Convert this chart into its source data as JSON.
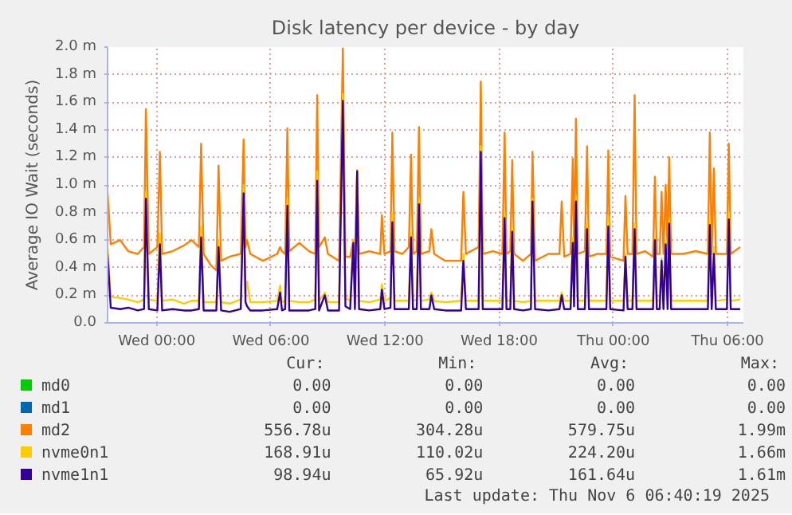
{
  "chart_data": {
    "type": "line",
    "title": "Disk latency per device - by day",
    "ylabel": "Average IO Wait (seconds)",
    "x": [
      "2025-11-04T21:25",
      "2025-11-04T21:35",
      "2025-11-04T22:05",
      "2025-11-04T22:30",
      "2025-11-04T23:00",
      "2025-11-04T23:20",
      "2025-11-04T23:26",
      "2025-11-04T23:35",
      "2025-11-05T00:02",
      "2025-11-05T00:10",
      "2025-11-05T00:17",
      "2025-11-05T00:50",
      "2025-11-05T01:25",
      "2025-11-05T01:50",
      "2025-11-05T02:13",
      "2025-11-05T02:20",
      "2025-11-05T02:28",
      "2025-11-05T02:50",
      "2025-11-05T03:08",
      "2025-11-05T03:15",
      "2025-11-05T03:23",
      "2025-11-05T03:50",
      "2025-11-05T04:25",
      "2025-11-05T04:34",
      "2025-11-05T04:40",
      "2025-11-05T04:45",
      "2025-11-05T04:55",
      "2025-11-05T05:35",
      "2025-11-05T06:20",
      "2025-11-05T06:29",
      "2025-11-05T06:35",
      "2025-11-05T06:45",
      "2025-11-05T06:52",
      "2025-11-05T06:58",
      "2025-11-05T07:30",
      "2025-11-05T08:00",
      "2025-11-05T08:20",
      "2025-11-05T08:26",
      "2025-11-05T08:32",
      "2025-11-05T08:50",
      "2025-11-05T09:00",
      "2025-11-05T09:35",
      "2025-11-05T09:47",
      "2025-11-05T09:55",
      "2025-11-05T10:10",
      "2025-11-05T10:20",
      "2025-11-05T10:25",
      "2025-11-05T10:32",
      "2025-11-05T10:38",
      "2025-11-05T11:10",
      "2025-11-05T11:45",
      "2025-11-05T11:50",
      "2025-11-05T11:58",
      "2025-11-05T12:17",
      "2025-11-05T12:23",
      "2025-11-05T12:30",
      "2025-11-05T12:55",
      "2025-11-05T13:15",
      "2025-11-05T13:22",
      "2025-11-05T13:28",
      "2025-11-05T13:40",
      "2025-11-05T13:47",
      "2025-11-05T13:53",
      "2025-11-05T14:20",
      "2025-11-05T14:26",
      "2025-11-05T14:35",
      "2025-11-05T15:10",
      "2025-11-05T16:00",
      "2025-11-05T16:07",
      "2025-11-05T16:15",
      "2025-11-05T16:55",
      "2025-11-05T17:02",
      "2025-11-05T17:08",
      "2025-11-05T17:40",
      "2025-11-05T18:10",
      "2025-11-05T18:17",
      "2025-11-05T18:23",
      "2025-11-05T18:35",
      "2025-11-05T18:41",
      "2025-11-05T18:47",
      "2025-11-05T19:15",
      "2025-11-05T19:40",
      "2025-11-05T19:45",
      "2025-11-05T19:53",
      "2025-11-05T20:35",
      "2025-11-05T21:10",
      "2025-11-05T21:17",
      "2025-11-05T21:25",
      "2025-11-05T21:45",
      "2025-11-05T21:52",
      "2025-11-05T21:56",
      "2025-11-05T22:02",
      "2025-11-05T22:08",
      "2025-11-05T22:30",
      "2025-11-05T22:37",
      "2025-11-05T22:43",
      "2025-11-05T23:10",
      "2025-11-05T23:38",
      "2025-11-05T23:44",
      "2025-11-05T23:50",
      "2025-11-06T00:32",
      "2025-11-06T00:38",
      "2025-11-06T00:45",
      "2025-11-06T01:00",
      "2025-11-06T01:07",
      "2025-11-06T01:13",
      "2025-11-06T01:40",
      "2025-11-06T02:05",
      "2025-11-06T02:11",
      "2025-11-06T02:17",
      "2025-11-06T02:26",
      "2025-11-06T02:32",
      "2025-11-06T02:38",
      "2025-11-06T02:45",
      "2025-11-06T02:51",
      "2025-11-06T02:56",
      "2025-11-06T03:02",
      "2025-11-06T03:40",
      "2025-11-06T04:20",
      "2025-11-06T04:58",
      "2025-11-06T05:04",
      "2025-11-06T05:10",
      "2025-11-06T05:17",
      "2025-11-06T05:23",
      "2025-11-06T05:58",
      "2025-11-06T06:04",
      "2025-11-06T06:10",
      "2025-11-06T06:40"
    ],
    "series": [
      {
        "name": "md0",
        "color": "#00cc00",
        "values": [
          null,
          null,
          null,
          null,
          null,
          null,
          null,
          null,
          null,
          null,
          null,
          null,
          null,
          null,
          null,
          null,
          null,
          null,
          null,
          null,
          null,
          null,
          null,
          null,
          null,
          null,
          null,
          null,
          null,
          null,
          null,
          null,
          null,
          null,
          null,
          null,
          null,
          null,
          null,
          null,
          null,
          null,
          null,
          null,
          null,
          null,
          null,
          null,
          null,
          null,
          null,
          null,
          null,
          null,
          null,
          null,
          null,
          null,
          null,
          null,
          null,
          null,
          null,
          null,
          null,
          null,
          null,
          null,
          null,
          null,
          null,
          null,
          null,
          null,
          null,
          null,
          null,
          null,
          null,
          null,
          null,
          null,
          null,
          null,
          null,
          null,
          null,
          null,
          null,
          null,
          null,
          null,
          null,
          null,
          null,
          null,
          null,
          null,
          null,
          null,
          null,
          null,
          null,
          null,
          null,
          null,
          null,
          null,
          null,
          null,
          null,
          null,
          null,
          null,
          null,
          null,
          null,
          null,
          null,
          null,
          null,
          null,
          null,
          null,
          null,
          null,
          null,
          null
        ]
      },
      {
        "name": "md1",
        "color": "#0066b3",
        "values": [
          null,
          null,
          null,
          null,
          null,
          null,
          null,
          null,
          null,
          null,
          null,
          null,
          null,
          null,
          null,
          null,
          null,
          null,
          null,
          null,
          null,
          null,
          null,
          null,
          null,
          null,
          null,
          null,
          null,
          null,
          null,
          null,
          null,
          null,
          null,
          null,
          null,
          null,
          null,
          null,
          null,
          null,
          null,
          null,
          null,
          null,
          null,
          null,
          null,
          null,
          null,
          null,
          null,
          null,
          null,
          null,
          null,
          null,
          null,
          null,
          null,
          null,
          null,
          null,
          null,
          null,
          null,
          null,
          null,
          null,
          null,
          null,
          null,
          null,
          null,
          null,
          null,
          null,
          null,
          null,
          null,
          null,
          null,
          null,
          null,
          null,
          null,
          null,
          null,
          null,
          null,
          null,
          null,
          null,
          null,
          null,
          null,
          null,
          null,
          null,
          null,
          null,
          null,
          null,
          null,
          null,
          null,
          null,
          null,
          null,
          null,
          null,
          null,
          null,
          null,
          null,
          null,
          null,
          null,
          null,
          null,
          null,
          null,
          null,
          null,
          null,
          null,
          null
        ]
      },
      {
        "name": "md2",
        "color": "#ff8000",
        "values": [
          0.95,
          0.57,
          0.6,
          0.52,
          0.5,
          0.55,
          1.55,
          0.5,
          0.55,
          1.24,
          0.5,
          0.52,
          0.56,
          0.6,
          0.55,
          1.3,
          0.5,
          0.42,
          0.38,
          1.14,
          0.45,
          0.48,
          0.5,
          1.33,
          0.55,
          0.6,
          0.5,
          0.45,
          0.5,
          0.55,
          0.52,
          0.5,
          1.41,
          0.52,
          0.58,
          0.52,
          0.5,
          1.65,
          0.55,
          0.62,
          0.5,
          0.45,
          1.99,
          0.48,
          0.48,
          0.6,
          0.5,
          1.1,
          0.5,
          0.52,
          0.5,
          0.78,
          0.5,
          0.52,
          1.38,
          0.52,
          0.5,
          0.55,
          1.22,
          0.5,
          0.52,
          1.42,
          0.5,
          0.52,
          0.68,
          0.5,
          0.45,
          0.45,
          0.95,
          0.5,
          0.55,
          1.75,
          0.5,
          0.52,
          0.5,
          1.38,
          0.5,
          0.52,
          1.18,
          0.5,
          0.45,
          0.5,
          1.24,
          0.45,
          0.5,
          0.5,
          0.88,
          0.48,
          0.5,
          1.19,
          0.55,
          1.48,
          0.5,
          0.52,
          1.28,
          0.48,
          0.5,
          0.5,
          1.25,
          0.48,
          0.45,
          0.92,
          0.5,
          0.5,
          1.65,
          0.5,
          0.52,
          0.48,
          1.06,
          0.5,
          0.5,
          0.95,
          0.5,
          1.0,
          0.5,
          1.2,
          0.5,
          0.5,
          0.52,
          0.5,
          1.38,
          0.5,
          1.12,
          0.5,
          0.5,
          1.3,
          0.5,
          0.55
        ]
      },
      {
        "name": "nvme0n1",
        "color": "#ffcc00",
        "values": [
          0.55,
          0.19,
          0.18,
          0.17,
          0.15,
          0.17,
          0.95,
          0.17,
          0.16,
          0.65,
          0.16,
          0.17,
          0.14,
          0.16,
          0.16,
          0.7,
          0.15,
          0.15,
          0.15,
          0.6,
          0.15,
          0.14,
          0.17,
          1.0,
          0.2,
          0.3,
          0.15,
          0.15,
          0.16,
          0.27,
          0.15,
          0.16,
          0.9,
          0.16,
          0.15,
          0.15,
          0.17,
          1.1,
          0.16,
          0.22,
          0.15,
          0.15,
          1.66,
          0.18,
          0.16,
          0.6,
          0.16,
          1.11,
          0.16,
          0.15,
          0.17,
          0.28,
          0.16,
          0.18,
          0.8,
          0.16,
          0.16,
          0.16,
          0.65,
          0.16,
          0.17,
          0.9,
          0.16,
          0.17,
          0.22,
          0.16,
          0.15,
          0.16,
          0.5,
          0.16,
          0.16,
          1.28,
          0.16,
          0.16,
          0.16,
          0.8,
          0.16,
          0.16,
          0.7,
          0.16,
          0.15,
          0.16,
          0.9,
          0.16,
          0.16,
          0.16,
          0.22,
          0.16,
          0.16,
          0.62,
          0.2,
          0.92,
          0.16,
          0.16,
          0.72,
          0.16,
          0.16,
          0.16,
          0.78,
          0.16,
          0.16,
          0.5,
          0.16,
          0.16,
          0.72,
          0.16,
          0.16,
          0.16,
          0.62,
          0.16,
          0.16,
          0.47,
          0.16,
          0.6,
          0.16,
          0.75,
          0.16,
          0.16,
          0.16,
          0.16,
          0.75,
          0.16,
          0.55,
          0.16,
          0.17,
          0.8,
          0.16,
          0.17
        ]
      },
      {
        "name": "nvme1n1",
        "color": "#330099",
        "values": [
          0.5,
          0.11,
          0.1,
          0.11,
          0.09,
          0.1,
          0.9,
          0.1,
          0.09,
          0.57,
          0.09,
          0.1,
          0.09,
          0.09,
          0.1,
          0.62,
          0.09,
          0.09,
          0.09,
          0.55,
          0.09,
          0.08,
          0.1,
          0.94,
          0.15,
          0.12,
          0.09,
          0.09,
          0.1,
          0.22,
          0.09,
          0.1,
          0.85,
          0.09,
          0.09,
          0.09,
          0.1,
          1.03,
          0.09,
          0.2,
          0.09,
          0.09,
          1.61,
          0.12,
          0.1,
          0.58,
          0.1,
          1.1,
          0.1,
          0.09,
          0.1,
          0.24,
          0.1,
          0.11,
          0.73,
          0.1,
          0.1,
          0.1,
          0.62,
          0.1,
          0.1,
          0.86,
          0.1,
          0.1,
          0.2,
          0.1,
          0.09,
          0.09,
          0.45,
          0.1,
          0.1,
          1.24,
          0.1,
          0.1,
          0.1,
          0.76,
          0.1,
          0.1,
          0.66,
          0.1,
          0.09,
          0.1,
          0.88,
          0.1,
          0.09,
          0.1,
          0.2,
          0.1,
          0.1,
          0.58,
          0.12,
          0.88,
          0.1,
          0.1,
          0.68,
          0.1,
          0.1,
          0.1,
          0.7,
          0.1,
          0.09,
          0.48,
          0.1,
          0.1,
          0.68,
          0.1,
          0.1,
          0.1,
          0.6,
          0.1,
          0.1,
          0.45,
          0.1,
          0.57,
          0.1,
          0.72,
          0.1,
          0.1,
          0.1,
          0.1,
          0.71,
          0.1,
          0.5,
          0.1,
          0.1,
          0.75,
          0.1,
          0.1
        ]
      }
    ],
    "xlim": [
      "2025-11-04T21:25",
      "2025-11-06T06:50"
    ],
    "ylim": [
      0,
      2.0
    ],
    "xticks": [
      {
        "value": "2025-11-05T00:00",
        "label": "Wed 00:00"
      },
      {
        "value": "2025-11-05T06:00",
        "label": "Wed 06:00"
      },
      {
        "value": "2025-11-05T12:00",
        "label": "Wed 12:00"
      },
      {
        "value": "2025-11-05T18:00",
        "label": "Wed 18:00"
      },
      {
        "value": "2025-11-06T00:00",
        "label": "Thu 00:00"
      },
      {
        "value": "2025-11-06T06:00",
        "label": "Thu 06:00"
      }
    ],
    "yticks": [
      {
        "value": 0,
        "label": "0.0"
      },
      {
        "value": 0.2,
        "label": "0.2 m"
      },
      {
        "value": 0.4,
        "label": "0.4 m"
      },
      {
        "value": 0.6,
        "label": "0.6 m"
      },
      {
        "value": 0.8,
        "label": "0.8 m"
      },
      {
        "value": 1.0,
        "label": "1.0 m"
      },
      {
        "value": 1.2,
        "label": "1.2 m"
      },
      {
        "value": 1.4,
        "label": "1.4 m"
      },
      {
        "value": 1.6,
        "label": "1.6 m"
      },
      {
        "value": 1.8,
        "label": "1.8 m"
      },
      {
        "value": 2.0,
        "label": "2.0 m"
      }
    ],
    "grid": true,
    "legend": "bottom",
    "marker": "none",
    "line_style": "solid",
    "annotations": [
      "Cur:",
      "Min:",
      "Avg:",
      "Max:",
      "0.00",
      "0.00",
      "0.00",
      "0.00",
      "0.00",
      "0.00",
      "0.00",
      "0.00",
      "556.78u",
      "304.28u",
      "579.75u",
      "1.99m",
      "168.91u",
      "110.02u",
      "224.20u",
      "1.66m",
      "98.94u",
      "65.92u",
      "161.64u",
      "1.61m",
      "Last update: Thu Nov  6 06:40:19 2025"
    ]
  }
}
